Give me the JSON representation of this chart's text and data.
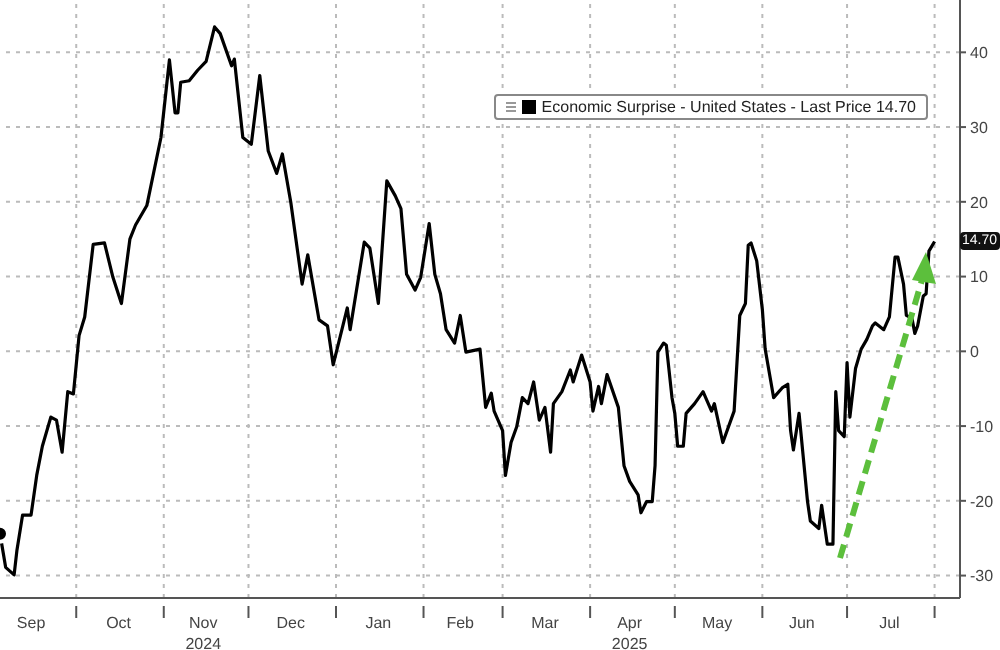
{
  "chart_data": {
    "type": "line",
    "legend": "top right",
    "grid": true,
    "x": [
      "2024-09-04",
      "2024-09-06",
      "2024-09-09",
      "2024-09-10",
      "2024-09-12",
      "2024-09-15",
      "2024-09-17",
      "2024-09-19",
      "2024-09-22",
      "2024-09-24",
      "2024-09-26",
      "2024-09-28",
      "2024-09-30",
      "2024-10-02",
      "2024-10-04",
      "2024-10-07",
      "2024-10-11",
      "2024-10-14",
      "2024-10-17",
      "2024-10-20",
      "2024-10-22",
      "2024-10-26",
      "2024-10-31",
      "2024-11-03",
      "2024-11-05",
      "2024-11-06",
      "2024-11-07",
      "2024-11-10",
      "2024-11-13",
      "2024-11-16",
      "2024-11-19",
      "2024-11-21",
      "2024-11-25",
      "2024-11-26",
      "2024-11-29",
      "2024-12-02",
      "2024-12-05",
      "2024-12-08",
      "2024-12-11",
      "2024-12-13",
      "2024-12-16",
      "2024-12-20",
      "2024-12-22",
      "2024-12-26",
      "2024-12-29",
      "2024-12-31",
      "2025-01-05",
      "2025-01-06",
      "2025-01-09",
      "2025-01-11",
      "2025-01-13",
      "2025-01-16",
      "2025-01-19",
      "2025-01-22",
      "2025-01-24",
      "2025-01-26",
      "2025-01-29",
      "2025-01-31",
      "2025-02-03",
      "2025-02-05",
      "2025-02-07",
      "2025-02-09",
      "2025-02-12",
      "2025-02-14",
      "2025-02-16",
      "2025-02-21",
      "2025-02-23",
      "2025-02-25",
      "2025-02-26",
      "2025-03-01",
      "2025-03-02",
      "2025-03-04",
      "2025-03-06",
      "2025-03-08",
      "2025-03-10",
      "2025-03-12",
      "2025-03-14",
      "2025-03-16",
      "2025-03-18",
      "2025-03-19",
      "2025-03-22",
      "2025-03-25",
      "2025-03-26",
      "2025-03-29",
      "2025-04-01",
      "2025-04-02",
      "2025-04-04",
      "2025-04-05",
      "2025-04-07",
      "2025-04-11",
      "2025-04-13",
      "2025-04-15",
      "2025-04-18",
      "2025-04-19",
      "2025-04-21",
      "2025-04-23",
      "2025-04-24",
      "2025-04-25",
      "2025-04-27",
      "2025-04-28",
      "2025-04-30",
      "2025-05-01",
      "2025-05-02",
      "2025-05-04",
      "2025-05-05",
      "2025-05-08",
      "2025-05-11",
      "2025-05-14",
      "2025-05-15",
      "2025-05-18",
      "2025-05-22",
      "2025-05-24",
      "2025-05-26",
      "2025-05-27",
      "2025-05-28",
      "2025-05-30",
      "2025-06-01",
      "2025-06-02",
      "2025-06-05",
      "2025-06-08",
      "2025-06-10",
      "2025-06-11",
      "2025-06-12",
      "2025-06-14",
      "2025-06-17",
      "2025-06-18",
      "2025-06-21",
      "2025-06-22",
      "2025-06-24",
      "2025-06-26",
      "2025-06-27",
      "2025-06-28",
      "2025-06-30",
      "2025-07-01",
      "2025-07-02",
      "2025-07-04",
      "2025-07-06",
      "2025-07-08",
      "2025-07-10",
      "2025-07-11",
      "2025-07-14",
      "2025-07-16",
      "2025-07-18",
      "2025-07-19",
      "2025-07-21",
      "2025-07-22",
      "2025-07-24",
      "2025-07-25",
      "2025-07-26",
      "2025-07-28",
      "2025-07-29",
      "2025-07-30",
      "2025-08-01"
    ],
    "series": [
      {
        "name": "Economic Surprise - United States - Last Price 14.70",
        "color": "#000000",
        "values": [
          -24.4,
          -28.9,
          -29.9,
          -26.6,
          -21.9,
          -21.9,
          -16.6,
          -12.7,
          -8.8,
          -9.2,
          -13.5,
          -5.4,
          -5.7,
          2.1,
          4.6,
          14.3,
          14.5,
          9.9,
          6.4,
          15,
          16.9,
          19.5,
          28.6,
          39,
          31.9,
          31.9,
          36,
          36.2,
          37.6,
          38.8,
          43.4,
          42.5,
          38.2,
          39.1,
          28.6,
          27.7,
          36.9,
          26.8,
          23.8,
          26.4,
          19.9,
          9,
          12.9,
          4.2,
          3.4,
          -1.8,
          5.8,
          2.9,
          9.9,
          14.6,
          13.8,
          6.4,
          22.8,
          20.8,
          19.1,
          10.3,
          8.2,
          9.9,
          17.1,
          10.3,
          7.7,
          2.9,
          1.1,
          4.8,
          -0.1,
          0.3,
          -7.5,
          -5.6,
          -8,
          -10.6,
          -16.6,
          -12.2,
          -10.1,
          -6.2,
          -7,
          -4.1,
          -9.2,
          -7.5,
          -13.5,
          -7,
          -5.4,
          -2.5,
          -4.1,
          -0.5,
          -4.1,
          -8,
          -4.7,
          -7,
          -3.1,
          -7.5,
          -15.3,
          -17.4,
          -19.2,
          -21.6,
          -20.1,
          -20.1,
          -15.3,
          -0.1,
          1.1,
          0.8,
          -6.2,
          -8.3,
          -12.7,
          -12.7,
          -8.3,
          -7,
          -5.4,
          -8,
          -7,
          -12.2,
          -8,
          4.8,
          6.4,
          14.2,
          14.5,
          12.1,
          5.6,
          0.3,
          -6.2,
          -4.9,
          -4.4,
          -10.6,
          -13.2,
          -8.3,
          -20.1,
          -22.7,
          -23.7,
          -20.6,
          -25.8,
          -25.8,
          -5.4,
          -10.6,
          -11.4,
          -1.5,
          -8.8,
          -2.3,
          0.3,
          1.6,
          3.4,
          3.8,
          2.9,
          4.6,
          12.6,
          12.6,
          9,
          4.8,
          4.4,
          2.4,
          3.4,
          7.4,
          7.7,
          13.4,
          14.7
        ]
      }
    ],
    "xlim": [
      "2024-09-04",
      "2025-08-10"
    ],
    "xticks": [
      {
        "value": "2024-09-15",
        "label": "Sep"
      },
      {
        "value": "2024-10-01",
        "label": null
      },
      {
        "value": "2024-10-16",
        "label": "Oct"
      },
      {
        "value": "2024-11-01",
        "label": null
      },
      {
        "value": "2024-11-15",
        "label": "Nov"
      },
      {
        "value": "2024-12-01",
        "label": null
      },
      {
        "value": "2024-12-16",
        "label": "Dec"
      },
      {
        "value": "2025-01-01",
        "label": null
      },
      {
        "value": "2025-01-16",
        "label": "Jan"
      },
      {
        "value": "2025-02-01",
        "label": null
      },
      {
        "value": "2025-02-14",
        "label": "Feb"
      },
      {
        "value": "2025-03-01",
        "label": null
      },
      {
        "value": "2025-03-16",
        "label": "Mar"
      },
      {
        "value": "2025-04-01",
        "label": null
      },
      {
        "value": "2025-04-15",
        "label": "Apr"
      },
      {
        "value": "2025-05-01",
        "label": null
      },
      {
        "value": "2025-05-16",
        "label": "May"
      },
      {
        "value": "2025-06-01",
        "label": null
      },
      {
        "value": "2025-06-15",
        "label": "Jun"
      },
      {
        "value": "2025-07-01",
        "label": null
      },
      {
        "value": "2025-07-16",
        "label": "Jul"
      },
      {
        "value": "2025-08-01",
        "label": null
      }
    ],
    "ylim": [
      -33,
      47
    ],
    "yticks": [
      -30,
      -20,
      -10,
      0,
      10,
      20,
      30,
      40
    ],
    "x2lim": [
      "2024-09-04",
      "2025-08-10"
    ],
    "x2ticks": [
      {
        "value": "2024-11-15",
        "label": "2024"
      },
      {
        "value": "2025-04-15",
        "label": "2025"
      }
    ],
    "annotations": [
      {
        "text": "14.70",
        "x": "2025-08-01",
        "y": 14.7
      }
    ]
  }
}
